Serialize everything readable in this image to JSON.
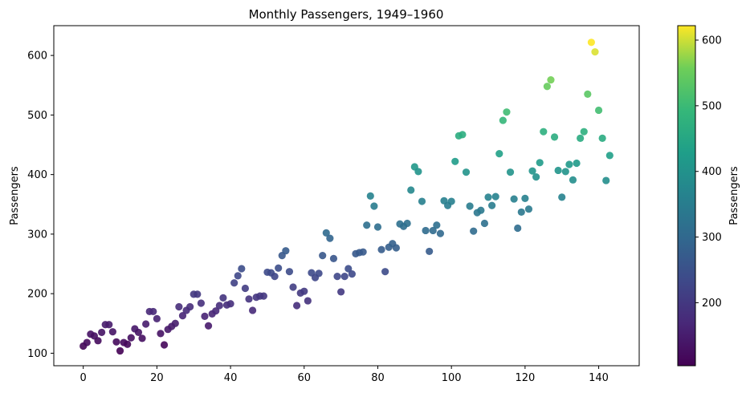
{
  "chart_data": {
    "type": "scatter",
    "title": "Monthly Passengers, 1949–1960",
    "xlabel": "",
    "ylabel": "Passengers",
    "xlim": [
      -8,
      151
    ],
    "ylim": [
      79,
      650
    ],
    "xticks": [
      0,
      20,
      40,
      60,
      80,
      100,
      120,
      140
    ],
    "yticks": [
      100,
      200,
      300,
      400,
      500,
      600
    ],
    "grid": false,
    "colormap": "viridis",
    "colorbar": {
      "label": "Passengers",
      "range": [
        104,
        622
      ],
      "ticks": [
        200,
        300,
        400,
        500,
        600
      ]
    },
    "x": [
      0,
      1,
      2,
      3,
      4,
      5,
      6,
      7,
      8,
      9,
      10,
      11,
      12,
      13,
      14,
      15,
      16,
      17,
      18,
      19,
      20,
      21,
      22,
      23,
      24,
      25,
      26,
      27,
      28,
      29,
      30,
      31,
      32,
      33,
      34,
      35,
      36,
      37,
      38,
      39,
      40,
      41,
      42,
      43,
      44,
      45,
      46,
      47,
      48,
      49,
      50,
      51,
      52,
      53,
      54,
      55,
      56,
      57,
      58,
      59,
      60,
      61,
      62,
      63,
      64,
      65,
      66,
      67,
      68,
      69,
      70,
      71,
      72,
      73,
      74,
      75,
      76,
      77,
      78,
      79,
      80,
      81,
      82,
      83,
      84,
      85,
      86,
      87,
      88,
      89,
      90,
      91,
      92,
      93,
      94,
      95,
      96,
      97,
      98,
      99,
      100,
      101,
      102,
      103,
      104,
      105,
      106,
      107,
      108,
      109,
      110,
      111,
      112,
      113,
      114,
      115,
      116,
      117,
      118,
      119,
      120,
      121,
      122,
      123,
      124,
      125,
      126,
      127,
      128,
      129,
      130,
      131,
      132,
      133,
      134,
      135,
      136,
      137,
      138,
      139,
      140,
      141,
      142,
      143
    ],
    "y": [
      112,
      118,
      132,
      129,
      121,
      135,
      148,
      148,
      136,
      119,
      104,
      118,
      115,
      126,
      141,
      135,
      125,
      149,
      170,
      170,
      158,
      133,
      114,
      140,
      145,
      150,
      178,
      163,
      172,
      178,
      199,
      199,
      184,
      162,
      146,
      166,
      171,
      180,
      193,
      181,
      183,
      218,
      230,
      242,
      209,
      191,
      172,
      194,
      196,
      196,
      236,
      235,
      229,
      243,
      264,
      272,
      237,
      211,
      180,
      201,
      204,
      188,
      235,
      227,
      234,
      264,
      302,
      293,
      259,
      229,
      203,
      229,
      242,
      233,
      267,
      269,
      270,
      315,
      364,
      347,
      312,
      274,
      237,
      278,
      284,
      277,
      317,
      313,
      318,
      374,
      413,
      405,
      355,
      306,
      271,
      306,
      315,
      301,
      356,
      348,
      355,
      422,
      465,
      467,
      404,
      347,
      305,
      336,
      340,
      318,
      362,
      348,
      363,
      435,
      491,
      505,
      404,
      359,
      310,
      337,
      360,
      342,
      406,
      396,
      420,
      472,
      548,
      559,
      463,
      407,
      362,
      405,
      417,
      391,
      419,
      461,
      472,
      535,
      622,
      606,
      508,
      461,
      390,
      432
    ]
  }
}
